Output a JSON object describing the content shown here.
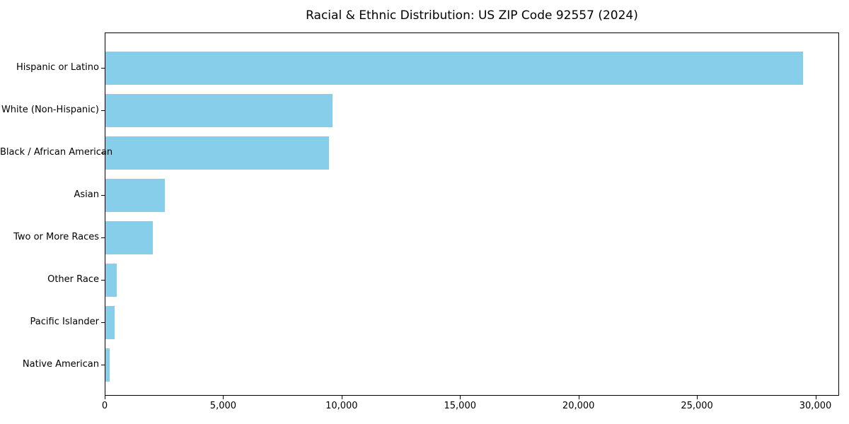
{
  "chart_data": {
    "type": "bar",
    "orientation": "horizontal",
    "title": "Racial & Ethnic Distribution: US ZIP Code 92557 (2024)",
    "categories": [
      "Hispanic or Latino",
      "White (Non-Hispanic)",
      "Black / African American",
      "Asian",
      "Two or More Races",
      "Other Race",
      "Pacific Islander",
      "Native American"
    ],
    "values": [
      29500,
      9600,
      9450,
      2500,
      2000,
      480,
      400,
      190
    ],
    "xlabel": "",
    "ylabel": "",
    "xlim": [
      0,
      31000
    ],
    "xticks": [
      0,
      5000,
      10000,
      15000,
      20000,
      25000,
      30000
    ],
    "xtick_labels": [
      "0",
      "5,000",
      "10,000",
      "15,000",
      "20,000",
      "25,000",
      "30,000"
    ],
    "grid": false,
    "legend": "none",
    "bar_color": "#87CEEB",
    "background_color": "#ffffff",
    "spine_color": "#000000"
  }
}
